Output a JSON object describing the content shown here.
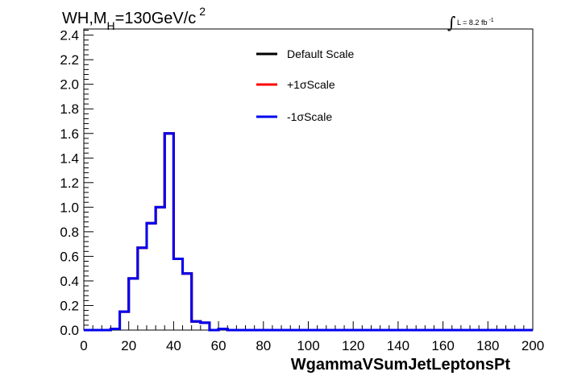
{
  "header": {
    "title_main_a": "WH,M",
    "title_sub": "H",
    "title_main_b": "=130GeV/c",
    "title_sup": "2",
    "lumi_label": "L = 8.2 fb",
    "lumi_sup": "-1"
  },
  "chart_data": {
    "type": "line",
    "xlabel": "WgammaVSumJetLeptonsPt",
    "ylabel": "",
    "xlim": [
      0,
      200
    ],
    "ylim": [
      0,
      2.45
    ],
    "xticks": [
      "0",
      "20",
      "40",
      "60",
      "80",
      "100",
      "120",
      "140",
      "160",
      "180",
      "200"
    ],
    "yticks": [
      "0.0",
      "0.2",
      "0.4",
      "0.6",
      "0.8",
      "1.0",
      "1.2",
      "1.4",
      "1.6",
      "1.8",
      "2.0",
      "2.2",
      "2.4"
    ],
    "bin_width": 4,
    "bin_edges_start": 0,
    "series": [
      {
        "name": "Default Scale",
        "color": "#000000",
        "values": [
          0,
          0,
          0,
          0.01,
          0.15,
          0.42,
          0.67,
          0.87,
          1.0,
          1.6,
          0.58,
          0.46,
          0.07,
          0.06,
          0,
          0.01,
          0,
          0,
          0,
          0,
          0,
          0,
          0,
          0,
          0,
          0,
          0,
          0,
          0,
          0,
          0,
          0,
          0,
          0,
          0,
          0,
          0,
          0,
          0,
          0,
          0,
          0,
          0,
          0,
          0,
          0,
          0,
          0,
          0,
          0
        ]
      },
      {
        "name": "+1σScale",
        "color": "#ff0000",
        "values": [
          0,
          0,
          0,
          0.01,
          0.15,
          0.42,
          0.67,
          0.87,
          1.0,
          1.6,
          0.58,
          0.46,
          0.07,
          0.06,
          0,
          0.01,
          0,
          0,
          0,
          0,
          0,
          0,
          0,
          0,
          0,
          0,
          0,
          0,
          0,
          0,
          0,
          0,
          0,
          0,
          0,
          0,
          0,
          0,
          0,
          0,
          0,
          0,
          0,
          0,
          0,
          0,
          0,
          0,
          0,
          0
        ]
      },
      {
        "name": "-1σScale",
        "color": "#0000ee",
        "values": [
          0,
          0,
          0,
          0.01,
          0.15,
          0.42,
          0.67,
          0.87,
          1.0,
          1.6,
          0.58,
          0.46,
          0.07,
          0.06,
          0,
          0.01,
          0,
          0,
          0,
          0,
          0,
          0,
          0,
          0,
          0,
          0,
          0,
          0,
          0,
          0,
          0,
          0,
          0,
          0,
          0,
          0,
          0,
          0,
          0,
          0,
          0,
          0,
          0,
          0,
          0,
          0,
          0,
          0,
          0,
          0
        ]
      }
    ],
    "legend": [
      "Default Scale",
      "+1σScale",
      "-1σScale"
    ],
    "legend_position": "top-center",
    "grid": false
  }
}
